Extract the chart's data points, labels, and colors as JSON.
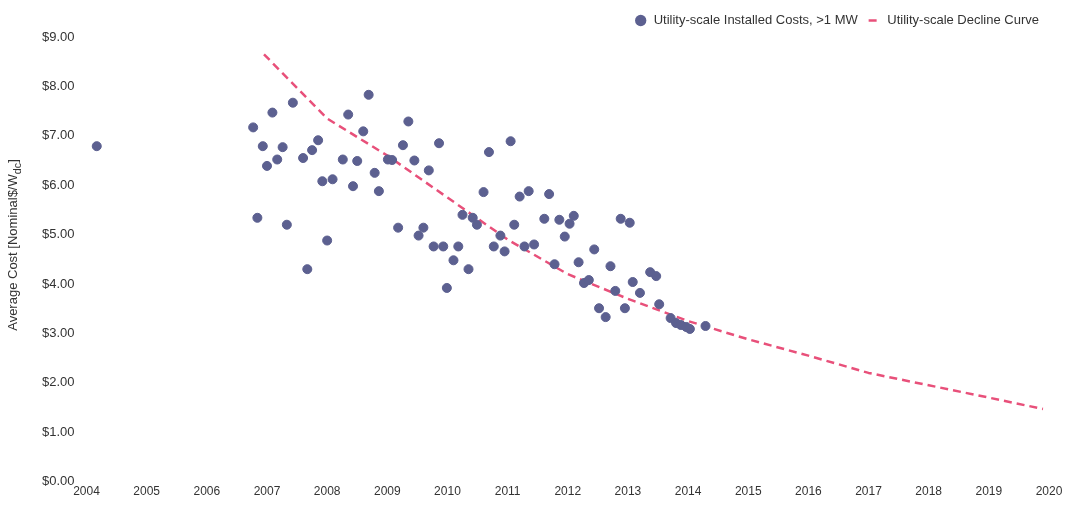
{
  "chart_data": {
    "type": "scatter",
    "ylabel": "Average Cost [Nominal$/W$_{dc}$]",
    "xlim": [
      2004,
      2020
    ],
    "xticks": [
      2004,
      2005,
      2006,
      2007,
      2008,
      2009,
      2010,
      2011,
      2012,
      2013,
      2014,
      2015,
      2016,
      2017,
      2018,
      2019,
      2020
    ],
    "ylim": [
      0,
      9
    ],
    "yticks": [
      {
        "value": 0,
        "label": "$0.00"
      },
      {
        "value": 1,
        "label": "$1.00"
      },
      {
        "value": 2,
        "label": "$2.00"
      },
      {
        "value": 3,
        "label": "$3.00"
      },
      {
        "value": 4,
        "label": "$4.00"
      },
      {
        "value": 5,
        "label": "$5.00"
      },
      {
        "value": 6,
        "label": "$6.00"
      },
      {
        "value": 7,
        "label": "$7.00"
      },
      {
        "value": 8,
        "label": "$8.00"
      },
      {
        "value": 9,
        "label": "$9.00"
      }
    ],
    "grid": false,
    "legend": "top right",
    "marker": "circle",
    "series": [
      {
        "name": "Utility-scale Installed Costs, >1 MW",
        "color": "#5c6090",
        "x": [
          2004.17,
          2006.77,
          2006.84,
          2006.93,
          2007.0,
          2007.09,
          2007.17,
          2007.26,
          2007.33,
          2007.43,
          2007.6,
          2007.67,
          2007.75,
          2007.85,
          2007.92,
          2008.0,
          2008.09,
          2008.26,
          2008.35,
          2008.43,
          2008.5,
          2008.6,
          2008.69,
          2008.79,
          2008.86,
          2009.01,
          2009.08,
          2009.18,
          2009.26,
          2009.35,
          2009.45,
          2009.52,
          2009.6,
          2009.69,
          2009.77,
          2009.86,
          2009.93,
          2009.99,
          2010.1,
          2010.18,
          2010.25,
          2010.35,
          2010.42,
          2010.49,
          2010.6,
          2010.69,
          2010.77,
          2010.88,
          2010.95,
          2011.05,
          2011.11,
          2011.2,
          2011.28,
          2011.35,
          2011.44,
          2011.61,
          2011.69,
          2011.78,
          2011.86,
          2011.95,
          2012.03,
          2012.1,
          2012.18,
          2012.27,
          2012.35,
          2012.44,
          2012.52,
          2012.63,
          2012.71,
          2012.79,
          2012.88,
          2012.95,
          2013.03,
          2013.08,
          2013.2,
          2013.37,
          2013.47,
          2013.52,
          2013.71,
          2013.8,
          2013.88,
          2013.97,
          2014.03,
          2014.29
        ],
        "values": [
          6.79,
          7.17,
          5.34,
          6.79,
          6.39,
          7.47,
          6.52,
          6.77,
          5.2,
          7.67,
          6.55,
          4.3,
          6.71,
          6.91,
          6.08,
          4.88,
          6.12,
          6.52,
          7.43,
          5.98,
          6.49,
          7.09,
          7.83,
          6.25,
          5.88,
          6.52,
          6.51,
          5.14,
          6.81,
          7.29,
          6.5,
          4.98,
          5.14,
          6.3,
          4.76,
          6.85,
          4.76,
          3.92,
          4.48,
          4.76,
          5.4,
          4.3,
          5.34,
          5.2,
          5.86,
          6.67,
          4.76,
          4.98,
          4.66,
          6.89,
          5.2,
          5.77,
          4.76,
          5.88,
          4.8,
          5.32,
          5.82,
          4.4,
          5.3,
          4.96,
          5.22,
          5.38,
          4.44,
          4.02,
          4.08,
          4.7,
          3.51,
          3.33,
          4.36,
          3.86,
          5.32,
          3.51,
          5.24,
          4.04,
          3.82,
          4.24,
          4.16,
          3.59,
          3.31,
          3.21,
          3.17,
          3.13,
          3.09,
          3.15
        ]
      },
      {
        "name": "Utility-scale Decline Curve",
        "type": "line",
        "color": "#e8507a",
        "line_style": "dashed",
        "marker": "none",
        "x": [
          2006.95,
          2008,
          2009,
          2010,
          2011,
          2012,
          2013,
          2014,
          2015,
          2016,
          2017,
          2018,
          2019,
          2019.9
        ],
        "values": [
          8.65,
          7.35,
          6.6,
          5.75,
          4.9,
          4.2,
          3.7,
          3.25,
          2.88,
          2.55,
          2.2,
          1.95,
          1.7,
          1.47
        ]
      }
    ]
  }
}
